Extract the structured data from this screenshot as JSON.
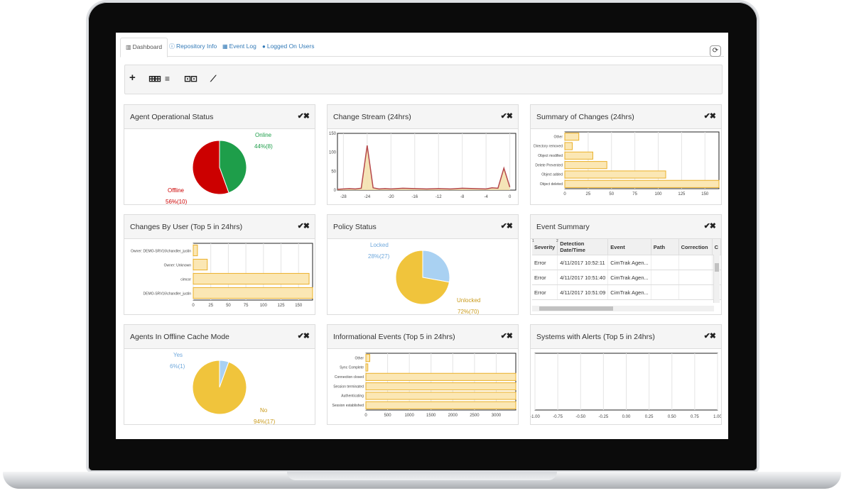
{
  "tabs": [
    {
      "label": "Dashboard",
      "icon": "bar-chart-icon",
      "glyph": "📊"
    },
    {
      "label": "Repository Info",
      "icon": "info-icon",
      "glyph": "ℹ"
    },
    {
      "label": "Event Log",
      "icon": "calendar-icon",
      "glyph": "▦"
    },
    {
      "label": "Logged On Users",
      "icon": "user-icon",
      "glyph": "👤"
    }
  ],
  "toolbar": {
    "add": "+",
    "grid_small": "⊞⊞",
    "list": "≡",
    "columns": "⊡⊡",
    "link": "⟋"
  },
  "refresh_glyph": "⟳",
  "panels": {
    "agent_status": {
      "title": "Agent Operational Status"
    },
    "change_stream": {
      "title": "Change Stream (24hrs)"
    },
    "summary_changes": {
      "title": "Summary of Changes (24hrs)"
    },
    "changes_by_user": {
      "title": "Changes By User (Top 5 in 24hrs)"
    },
    "policy_status": {
      "title": "Policy Status"
    },
    "event_summary": {
      "title": "Event Summary"
    },
    "offline_cache": {
      "title": "Agents In Offline Cache Mode"
    },
    "info_events": {
      "title": "Informational Events (Top 5 in 24hrs)"
    },
    "systems_alerts": {
      "title": "Systems with Alerts (Top 5 in 24hrs)"
    }
  },
  "panel_controls": "✔✖",
  "event_table": {
    "sort_nums": [
      "1",
      "2"
    ],
    "columns": [
      "Severity",
      "Detection Date/Time",
      "Event",
      "Path",
      "Correction",
      "C"
    ],
    "rows": [
      [
        "Error",
        "4/11/2017 10:52:11",
        "CimTrak Agen..."
      ],
      [
        "Error",
        "4/11/2017 10:51:40",
        "CimTrak Agen..."
      ],
      [
        "Error",
        "4/11/2017 10:51:09",
        "CimTrak Agen..."
      ]
    ]
  },
  "colors": {
    "green": "#1e9e4a",
    "red": "#cc0000",
    "yellow": "#f0c43c",
    "lightblue": "#a9d1f2",
    "bar_fill": "#fbe7b4",
    "bar_stroke": "#eab02a",
    "line_red": "#b5484b"
  },
  "chart_data": [
    {
      "type": "pie",
      "title": "Agent Operational Status",
      "slices": [
        {
          "name": "Online",
          "value": 8,
          "percent_label": "44%(8)",
          "color": "#1e9e4a"
        },
        {
          "name": "Offline",
          "value": 10,
          "percent_label": "56%(10)",
          "color": "#cc0000"
        }
      ]
    },
    {
      "type": "area",
      "title": "Change Stream (24hrs)",
      "x": [
        -29,
        -28,
        -27,
        -26,
        -25,
        -24,
        -23,
        -22,
        -21,
        -20,
        -18,
        -16,
        -14,
        -12,
        -10,
        -8,
        -6,
        -4,
        -3,
        -2,
        -1,
        0
      ],
      "series": [
        {
          "values": [
            2,
            3,
            4,
            3,
            5,
            118,
            6,
            3,
            4,
            3,
            5,
            4,
            3,
            4,
            3,
            5,
            4,
            3,
            6,
            5,
            58,
            8
          ]
        }
      ],
      "xticks": [
        -28,
        -24,
        -20,
        -16,
        -12,
        -8,
        -4,
        0
      ],
      "yticks": [
        0,
        50,
        100,
        150
      ],
      "ylim": [
        0,
        150
      ]
    },
    {
      "type": "bar",
      "orientation": "horizontal",
      "title": "Summary of Changes (24hrs)",
      "categories": [
        "Other",
        "Directory removed",
        "Object modified",
        "Delete Prevented",
        "Object added",
        "Object deleted"
      ],
      "values": [
        15,
        8,
        30,
        45,
        108,
        175
      ],
      "xticks": [
        0,
        25,
        50,
        75,
        100,
        125,
        150
      ],
      "xlim": [
        0,
        165
      ]
    },
    {
      "type": "bar",
      "orientation": "horizontal",
      "title": "Changes By User (Top 5 in 24hrs)",
      "categories": [
        "Owner: DEMO-SRV16\\chandler_justin",
        "Owner: Unknown",
        "cimcor",
        "DEMO-SRV16\\chandler_justin"
      ],
      "values": [
        6,
        20,
        165,
        170
      ],
      "xticks": [
        0,
        25,
        50,
        75,
        100,
        125,
        150
      ],
      "xlim": [
        0,
        170
      ]
    },
    {
      "type": "pie",
      "title": "Policy Status",
      "slices": [
        {
          "name": "Locked",
          "value": 27,
          "percent_label": "28%(27)",
          "color": "#a9d1f2"
        },
        {
          "name": "Unlocked",
          "value": 70,
          "percent_label": "72%(70)",
          "color": "#f0c43c"
        }
      ]
    },
    {
      "type": "pie",
      "title": "Agents In Offline Cache Mode",
      "slices": [
        {
          "name": "Yes",
          "value": 1,
          "percent_label": "6%(1)",
          "color": "#a9d1f2"
        },
        {
          "name": "No",
          "value": 17,
          "percent_label": "94%(17)",
          "color": "#f0c43c"
        }
      ]
    },
    {
      "type": "bar",
      "orientation": "horizontal",
      "title": "Informational Events (Top 5 in 24hrs)",
      "categories": [
        "Other",
        "Sync Complete",
        "Connection closed",
        "Session terminated",
        "Authenticating",
        "Session established"
      ],
      "values": [
        90,
        45,
        3450,
        3450,
        3450,
        3450
      ],
      "xticks": [
        0,
        500,
        1000,
        1500,
        2000,
        2500,
        3000
      ],
      "xlim": [
        0,
        3450
      ]
    },
    {
      "type": "line",
      "title": "Systems with Alerts (Top 5 in 24hrs)",
      "series": [],
      "xticks": [
        -1.0,
        -0.75,
        -0.5,
        -0.25,
        0.0,
        0.25,
        0.5,
        0.75,
        1.0
      ],
      "xlim": [
        -1,
        1
      ]
    }
  ]
}
